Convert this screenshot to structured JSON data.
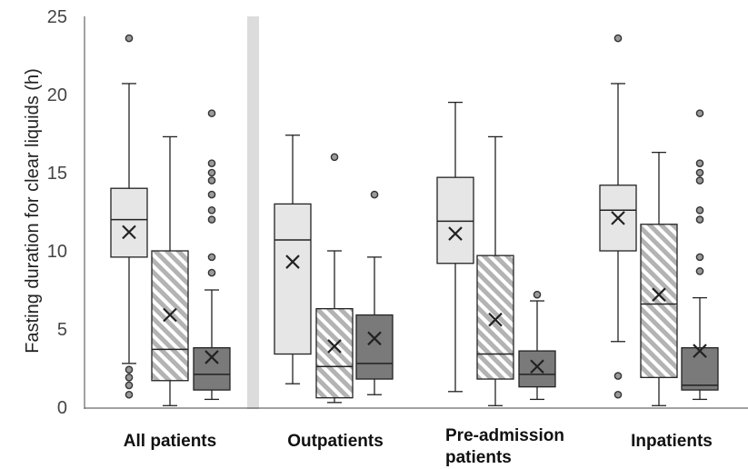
{
  "chart_data": {
    "type": "boxplot",
    "ylabel": "Fasting duration for clear liquids (h)",
    "ylim": [
      0,
      25
    ],
    "yticks": [
      0,
      5,
      10,
      15,
      20,
      25
    ],
    "grid": false,
    "legend": "none",
    "colors": {
      "light": "#e6e6e6",
      "hatched": "#b3b3b3",
      "dark": "#7a7a7a",
      "separator": "#dcdcdc"
    },
    "groups": [
      {
        "label": "All patients",
        "boxes": [
          {
            "style": "light",
            "min": 2.8,
            "q1": 9.6,
            "median": 12.0,
            "q3": 14.0,
            "max": 20.7,
            "mean": 11.2,
            "outliers": [
              23.6,
              2.4,
              1.9,
              1.4,
              0.8
            ]
          },
          {
            "style": "hatched",
            "min": 0.1,
            "q1": 1.7,
            "median": 3.7,
            "q3": 10.0,
            "max": 17.3,
            "mean": 5.9,
            "outliers": []
          },
          {
            "style": "dark",
            "min": 0.5,
            "q1": 1.1,
            "median": 2.1,
            "q3": 3.8,
            "max": 7.5,
            "mean": 3.2,
            "outliers": [
              8.6,
              9.6,
              12.0,
              12.6,
              13.6,
              14.5,
              15.0,
              15.6,
              18.8
            ]
          }
        ]
      },
      {
        "label": "Outpatients",
        "boxes": [
          {
            "style": "light",
            "min": 1.5,
            "q1": 3.4,
            "median": 10.7,
            "q3": 13.0,
            "max": 17.4,
            "mean": 9.3,
            "outliers": []
          },
          {
            "style": "hatched",
            "min": 0.3,
            "q1": 0.6,
            "median": 2.6,
            "q3": 6.3,
            "max": 10.0,
            "mean": 3.9,
            "outliers": [
              16.0
            ]
          },
          {
            "style": "dark",
            "min": 0.8,
            "q1": 1.8,
            "median": 2.8,
            "q3": 5.9,
            "max": 9.6,
            "mean": 4.4,
            "outliers": [
              13.6
            ]
          }
        ]
      },
      {
        "label": "Pre-admission patients",
        "label_lines": [
          "Pre-admission",
          "patients"
        ],
        "boxes": [
          {
            "style": "light",
            "min": 1.0,
            "q1": 9.2,
            "median": 11.9,
            "q3": 14.7,
            "max": 19.5,
            "mean": 11.1,
            "outliers": []
          },
          {
            "style": "hatched",
            "min": 0.1,
            "q1": 1.8,
            "median": 3.4,
            "q3": 9.7,
            "max": 17.3,
            "mean": 5.6,
            "outliers": []
          },
          {
            "style": "dark",
            "min": 0.5,
            "q1": 1.3,
            "median": 2.1,
            "q3": 3.6,
            "max": 6.8,
            "mean": 2.6,
            "outliers": [
              7.2
            ]
          }
        ]
      },
      {
        "label": "Inpatients",
        "boxes": [
          {
            "style": "light",
            "min": 4.2,
            "q1": 10.0,
            "median": 12.6,
            "q3": 14.2,
            "max": 20.7,
            "mean": 12.1,
            "outliers": [
              23.6,
              2.0,
              0.8
            ]
          },
          {
            "style": "hatched",
            "min": 0.1,
            "q1": 1.9,
            "median": 6.6,
            "q3": 11.7,
            "max": 16.3,
            "mean": 7.2,
            "outliers": []
          },
          {
            "style": "dark",
            "min": 0.5,
            "q1": 1.1,
            "median": 1.4,
            "q3": 3.8,
            "max": 7.0,
            "mean": 3.6,
            "outliers": [
              8.7,
              9.6,
              12.0,
              12.6,
              14.5,
              15.0,
              15.6,
              18.8
            ]
          }
        ]
      }
    ]
  }
}
